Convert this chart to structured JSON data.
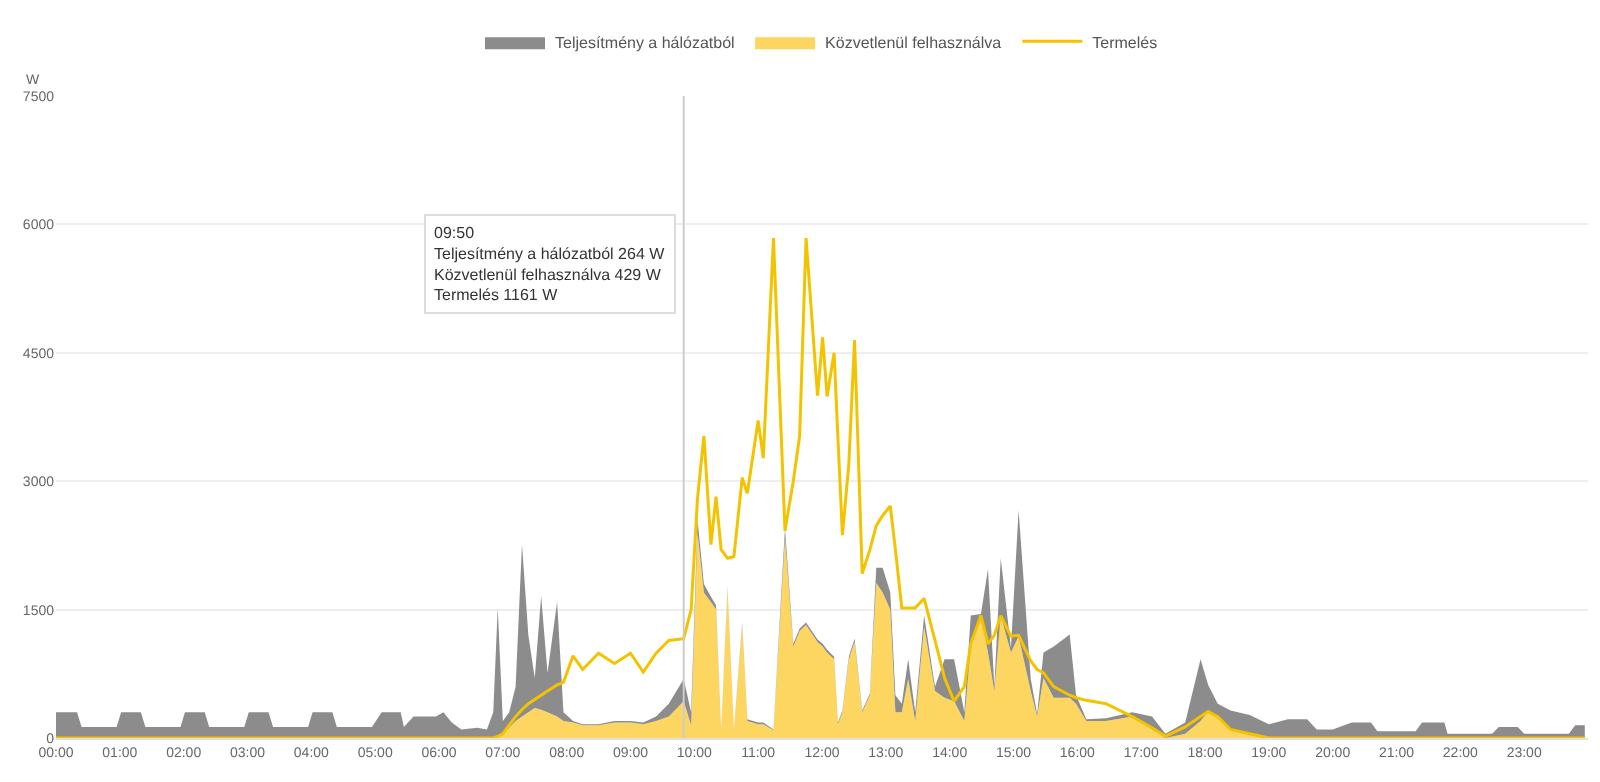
{
  "chart_data": {
    "type": "area",
    "stacked": true,
    "ylabel": "W",
    "legend": "top",
    "grid": "y",
    "x": [
      0,
      0.33,
      0.4,
      0.95,
      1.02,
      1.33,
      1.4,
      1.95,
      2.02,
      2.33,
      2.4,
      2.95,
      3.02,
      3.33,
      3.4,
      3.95,
      4.02,
      4.33,
      4.4,
      4.95,
      5.1,
      5.4,
      5.45,
      5.6,
      5.95,
      6.07,
      6.2,
      6.35,
      6.6,
      6.75,
      6.85,
      6.92,
      7.0,
      7.1,
      7.2,
      7.3,
      7.4,
      7.5,
      7.6,
      7.7,
      7.85,
      7.95,
      8.1,
      8.25,
      8.5,
      8.75,
      9.0,
      9.2,
      9.4,
      9.6,
      9.833,
      9.95,
      10.05,
      10.15,
      10.26,
      10.34,
      10.42,
      10.52,
      10.62,
      10.75,
      10.83,
      11.0,
      11.08,
      11.24,
      11.42,
      11.55,
      11.65,
      11.75,
      11.93,
      12.01,
      12.08,
      12.19,
      12.25,
      12.32,
      12.42,
      12.51,
      12.63,
      12.75,
      12.85,
      12.95,
      13.07,
      13.15,
      13.25,
      13.35,
      13.46,
      13.6,
      13.77,
      13.92,
      14.07,
      14.23,
      14.33,
      14.49,
      14.6,
      14.7,
      14.8,
      14.96,
      15.08,
      15.27,
      15.37,
      15.47,
      15.63,
      15.88,
      15.98,
      16.14,
      16.45,
      16.86,
      17.17,
      17.38,
      17.69,
      17.93,
      18.05,
      18.2,
      18.4,
      18.7,
      19.0,
      19.3,
      19.6,
      19.75,
      20.0,
      20.3,
      20.6,
      20.7,
      21.3,
      21.4,
      21.75,
      21.8,
      22.5,
      22.6,
      22.9,
      23.0,
      23.7,
      23.8,
      23.95
    ],
    "series": [
      {
        "name": "Közvetlenül felhasználva",
        "color": "#fcd660",
        "values": [
          0,
          0,
          0,
          0,
          0,
          0,
          0,
          0,
          0,
          0,
          0,
          0,
          0,
          0,
          0,
          0,
          0,
          0,
          0,
          0,
          0,
          0,
          0,
          0,
          0,
          0,
          0,
          0,
          0,
          0,
          0,
          20,
          50,
          120,
          200,
          250,
          300,
          350,
          330,
          300,
          250,
          200,
          180,
          150,
          150,
          180,
          180,
          160,
          200,
          250,
          430,
          150,
          2400,
          1700,
          1590,
          1500,
          90,
          1740,
          90,
          1320,
          200,
          160,
          160,
          90,
          2330,
          1070,
          1250,
          1320,
          1120,
          1070,
          1000,
          920,
          160,
          300,
          920,
          1120,
          300,
          500,
          1810,
          1700,
          1500,
          300,
          300,
          690,
          200,
          1300,
          550,
          470,
          430,
          200,
          1070,
          1430,
          1000,
          550,
          1430,
          1000,
          1190,
          550,
          250,
          700,
          470,
          470,
          400,
          200,
          200,
          250,
          100,
          0,
          50,
          200,
          310,
          250,
          100,
          50,
          0,
          0,
          0,
          0,
          0,
          0,
          0,
          0,
          0,
          0,
          0,
          0,
          0,
          0,
          0,
          0,
          0,
          0,
          0
        ]
      },
      {
        "name": "Teljesítmény a hálózatból",
        "color": "#8c8c8c",
        "values": [
          300,
          300,
          130,
          130,
          300,
          300,
          130,
          130,
          300,
          300,
          130,
          130,
          300,
          300,
          130,
          130,
          300,
          300,
          130,
          130,
          300,
          300,
          130,
          250,
          250,
          300,
          180,
          100,
          120,
          100,
          300,
          1500,
          150,
          180,
          400,
          2010,
          900,
          350,
          1330,
          460,
          1340,
          100,
          20,
          10,
          10,
          20,
          20,
          20,
          50,
          150,
          260,
          150,
          150,
          100,
          60,
          50,
          10,
          20,
          10,
          30,
          20,
          20,
          20,
          10,
          120,
          30,
          30,
          30,
          30,
          30,
          30,
          30,
          20,
          20,
          30,
          40,
          20,
          20,
          180,
          290,
          200,
          200,
          100,
          230,
          100,
          130,
          50,
          450,
          490,
          100,
          360,
          20,
          970,
          50,
          670,
          50,
          1470,
          140,
          30,
          300,
          600,
          740,
          100,
          20,
          30,
          50,
          150,
          50,
          130,
          720,
          310,
          150,
          220,
          220,
          160,
          220,
          220,
          100,
          100,
          180,
          180,
          80,
          80,
          180,
          180,
          50,
          50,
          130,
          130,
          50,
          50,
          150,
          150
        ]
      },
      {
        "name": "Termelés",
        "type": "line",
        "color": "#f4c300",
        "values": [
          0,
          0,
          0,
          0,
          0,
          0,
          0,
          0,
          0,
          0,
          0,
          0,
          0,
          0,
          0,
          0,
          0,
          0,
          0,
          0,
          0,
          0,
          0,
          0,
          0,
          0,
          0,
          0,
          0,
          0,
          0,
          20,
          50,
          150,
          250,
          330,
          400,
          450,
          500,
          550,
          620,
          650,
          960,
          800,
          990,
          870,
          990,
          770,
          990,
          1140,
          1160,
          1500,
          2800,
          3530,
          2260,
          2820,
          2200,
          2100,
          2120,
          3040,
          2860,
          3710,
          3270,
          5840,
          2420,
          3000,
          3530,
          5840,
          4000,
          4680,
          3990,
          4500,
          3500,
          2370,
          3200,
          4650,
          1920,
          2200,
          2480,
          2600,
          2710,
          2200,
          1520,
          1520,
          1520,
          1630,
          1140,
          700,
          430,
          600,
          1100,
          1430,
          1100,
          1200,
          1430,
          1190,
          1200,
          900,
          800,
          760,
          600,
          500,
          470,
          440,
          400,
          250,
          120,
          20,
          130,
          250,
          310,
          250,
          100,
          50,
          0,
          0,
          0,
          0,
          0,
          0,
          0,
          0,
          0,
          0,
          0,
          0,
          0,
          0,
          0,
          0,
          0,
          0,
          0
        ]
      }
    ],
    "xlim": [
      0,
      24
    ],
    "xticks": [
      {
        "value": 0,
        "label": "00:00"
      },
      {
        "value": 1,
        "label": "01:00"
      },
      {
        "value": 2,
        "label": "02:00"
      },
      {
        "value": 3,
        "label": "03:00"
      },
      {
        "value": 4,
        "label": "04:00"
      },
      {
        "value": 5,
        "label": "05:00"
      },
      {
        "value": 6,
        "label": "06:00"
      },
      {
        "value": 7,
        "label": "07:00"
      },
      {
        "value": 8,
        "label": "08:00"
      },
      {
        "value": 9,
        "label": "09:00"
      },
      {
        "value": 10,
        "label": "10:00"
      },
      {
        "value": 11,
        "label": "11:00"
      },
      {
        "value": 12,
        "label": "12:00"
      },
      {
        "value": 13,
        "label": "13:00"
      },
      {
        "value": 14,
        "label": "14:00"
      },
      {
        "value": 15,
        "label": "15:00"
      },
      {
        "value": 16,
        "label": "16:00"
      },
      {
        "value": 17,
        "label": "17:00"
      },
      {
        "value": 18,
        "label": "18:00"
      },
      {
        "value": 19,
        "label": "19:00"
      },
      {
        "value": 20,
        "label": "20:00"
      },
      {
        "value": 21,
        "label": "21:00"
      },
      {
        "value": 22,
        "label": "22:00"
      },
      {
        "value": 23,
        "label": "23:00"
      }
    ],
    "ylim": [
      0,
      7500
    ],
    "yticks": [
      0,
      1500,
      3000,
      4500,
      6000,
      7500
    ],
    "ref_lines": [
      {
        "axis": "x",
        "value": 9.833,
        "color": "#cccccc"
      }
    ],
    "annotations": [
      "09:50\nTeljesítmény a hálózatból 264 W\nKözvetlenül felhasználva 429 W\nTermelés 1161 W"
    ]
  }
}
